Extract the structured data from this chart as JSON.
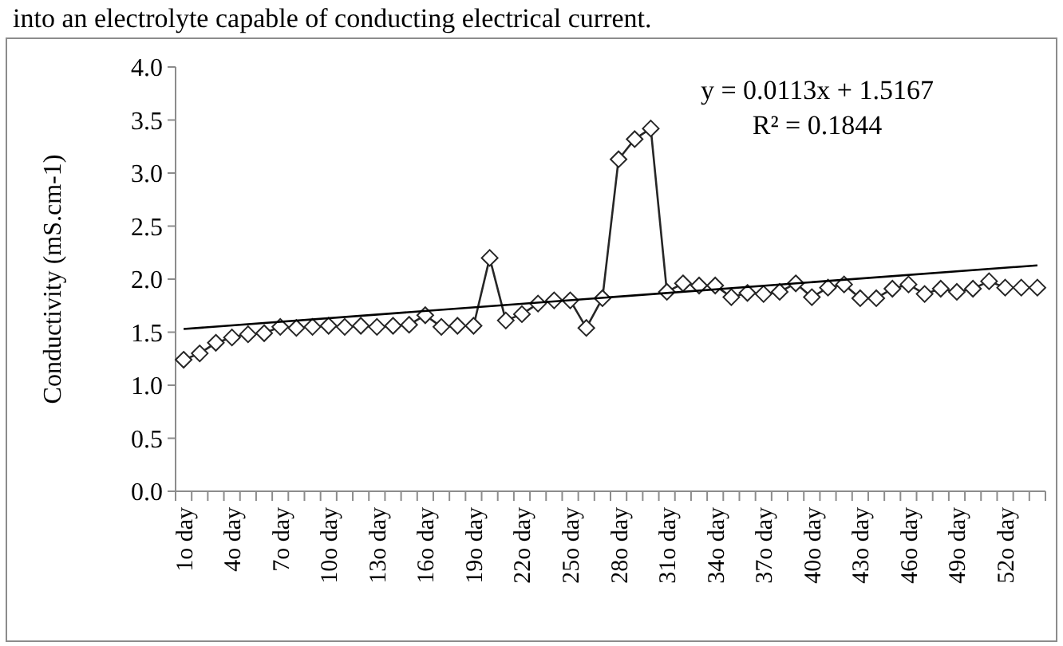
{
  "chart_data": {
    "type": "line",
    "ylabel": "Conductivity  (mS.cm-1)",
    "categories": [
      "1o day",
      null,
      null,
      "4o day",
      null,
      null,
      "7o day",
      null,
      null,
      "10o day",
      null,
      null,
      "13o day",
      null,
      null,
      "16o day",
      null,
      null,
      "19o day",
      null,
      null,
      "22o day",
      null,
      null,
      "25o day",
      null,
      null,
      "28o day",
      null,
      null,
      "31o day",
      null,
      null,
      "34o day",
      null,
      null,
      "37o day",
      null,
      null,
      "40o day",
      null,
      null,
      "43o day",
      null,
      null,
      "46o day",
      null,
      null,
      "49o day",
      null,
      null,
      "52o day",
      null,
      null
    ],
    "series": [
      {
        "color": "#262626",
        "marker": "diamond",
        "values": [
          1.24,
          1.3,
          1.4,
          1.45,
          1.48,
          1.49,
          1.55,
          1.54,
          1.55,
          1.56,
          1.55,
          1.56,
          1.55,
          1.56,
          1.57,
          1.66,
          1.55,
          1.56,
          1.56,
          2.2,
          1.61,
          1.67,
          1.77,
          1.8,
          1.8,
          1.54,
          1.82,
          3.13,
          3.32,
          3.42,
          1.88,
          1.96,
          1.94,
          1.94,
          1.83,
          1.87,
          1.86,
          1.88,
          1.96,
          1.83,
          1.92,
          1.95,
          1.82,
          1.82,
          1.91,
          1.95,
          1.86,
          1.91,
          1.88,
          1.91,
          1.98,
          1.92,
          1.92,
          1.92
        ]
      },
      {
        "type": "line",
        "color": "#000000",
        "marker": "none",
        "values": [
          1.53,
          null,
          null,
          null,
          null,
          null,
          null,
          null,
          null,
          null,
          null,
          null,
          null,
          null,
          null,
          null,
          null,
          null,
          null,
          null,
          null,
          null,
          null,
          null,
          null,
          null,
          null,
          null,
          null,
          null,
          null,
          null,
          null,
          null,
          null,
          null,
          null,
          null,
          null,
          null,
          null,
          null,
          null,
          null,
          null,
          null,
          null,
          null,
          null,
          null,
          null,
          null,
          null,
          2.13
        ]
      }
    ],
    "ylim": [
      0,
      4
    ],
    "yticks": [
      {
        "value": 0,
        "label": "0.0"
      },
      {
        "value": 0.5,
        "label": "0.5"
      },
      {
        "value": 1,
        "label": "1.0"
      },
      {
        "value": 1.5,
        "label": "1.5"
      },
      {
        "value": 2,
        "label": "2.0"
      },
      {
        "value": 2.5,
        "label": "2.5"
      },
      {
        "value": 3,
        "label": "3.0"
      },
      {
        "value": 3.5,
        "label": "3.5"
      },
      {
        "value": 4,
        "label": "4.0"
      }
    ],
    "grid": false,
    "annotations": [
      "into an electrolyte capable of conducting electrical current.",
      "y = 0.0113x + 1.5167",
      "R² = 0.1844"
    ]
  }
}
